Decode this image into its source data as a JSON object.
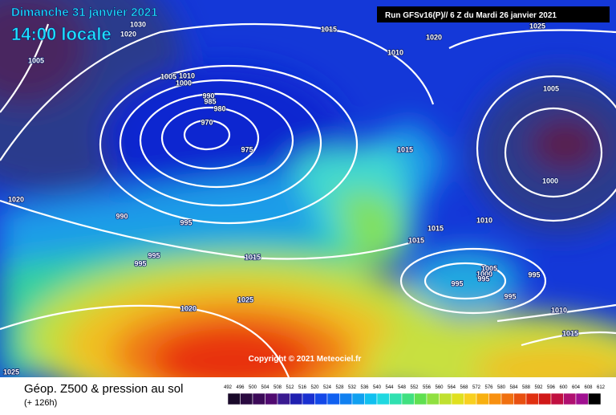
{
  "header": {
    "date": "Dimanche 31 janvier 2021",
    "time": "14:00 locale",
    "run": "Run GFSv16(P)// 6 Z du Mardi 26 janvier 2021"
  },
  "map": {
    "copyright": "Copyright © 2021 Meteociel.fr",
    "isobar_labels": [
      "1005",
      "1030",
      "1020",
      "1015",
      "1020",
      "1010",
      "1025",
      "1005",
      "1000",
      "1010",
      "1015",
      "1015",
      "1015",
      "1005",
      "1000",
      "995",
      "995",
      "995",
      "995",
      "1010",
      "1015",
      "1010",
      "1005",
      "1000",
      "990",
      "985",
      "980",
      "970",
      "975",
      "1020",
      "990",
      "995",
      "995",
      "995",
      "1015",
      "1025",
      "1020",
      "1025"
    ]
  },
  "footer": {
    "title": "Géop. Z500 & pression au sol",
    "lead": "(+ 126h)",
    "scale": [
      "492",
      "496",
      "500",
      "504",
      "508",
      "512",
      "516",
      "520",
      "524",
      "528",
      "532",
      "536",
      "540",
      "544",
      "548",
      "552",
      "556",
      "560",
      "564",
      "568",
      "572",
      "576",
      "580",
      "584",
      "588",
      "592",
      "596",
      "600",
      "604",
      "608",
      "612"
    ]
  }
}
